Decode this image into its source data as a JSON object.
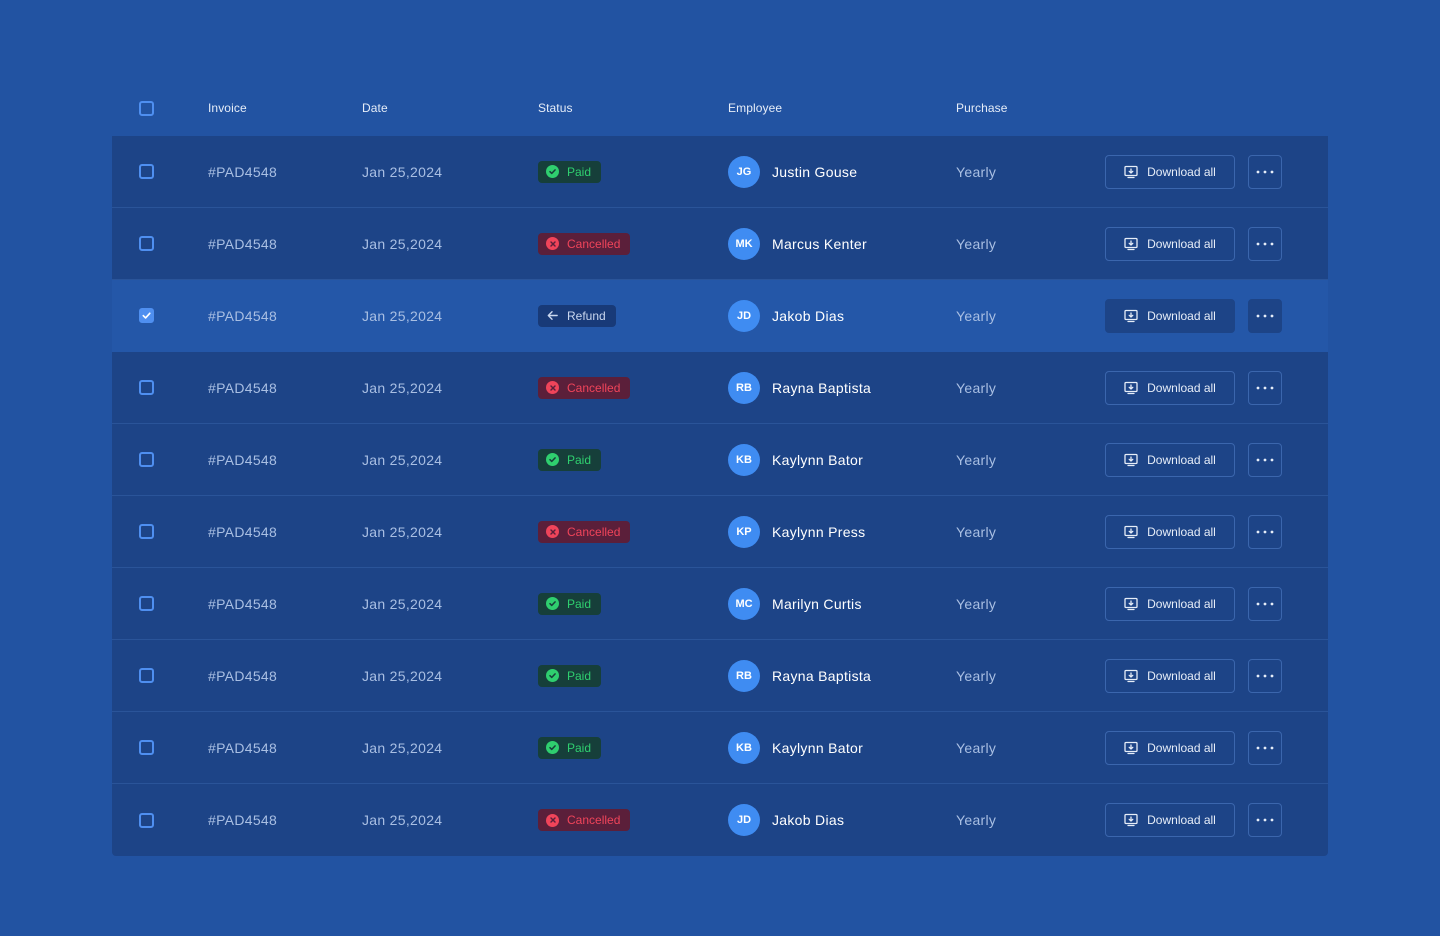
{
  "header": {
    "invoice": "Invoice",
    "date": "Date",
    "status": "Status",
    "employee": "Employee",
    "purchase": "Purchase"
  },
  "actions": {
    "download_label": "Download all"
  },
  "rows": [
    {
      "invoice": "#PAD4548",
      "date": "Jan 25,2024",
      "status": "Paid",
      "status_type": "paid",
      "initials": "JG",
      "employee": "Justin Gouse",
      "purchase": "Yearly",
      "checked": false
    },
    {
      "invoice": "#PAD4548",
      "date": "Jan 25,2024",
      "status": "Cancelled",
      "status_type": "cancelled",
      "initials": "MK",
      "employee": "Marcus Kenter",
      "purchase": "Yearly",
      "checked": false
    },
    {
      "invoice": "#PAD4548",
      "date": "Jan 25,2024",
      "status": "Refund",
      "status_type": "refund",
      "initials": "JD",
      "employee": "Jakob Dias",
      "purchase": "Yearly",
      "checked": true
    },
    {
      "invoice": "#PAD4548",
      "date": "Jan 25,2024",
      "status": "Cancelled",
      "status_type": "cancelled",
      "initials": "RB",
      "employee": "Rayna Baptista",
      "purchase": "Yearly",
      "checked": false
    },
    {
      "invoice": "#PAD4548",
      "date": "Jan 25,2024",
      "status": "Paid",
      "status_type": "paid",
      "initials": "KB",
      "employee": "Kaylynn Bator",
      "purchase": "Yearly",
      "checked": false
    },
    {
      "invoice": "#PAD4548",
      "date": "Jan 25,2024",
      "status": "Cancelled",
      "status_type": "cancelled",
      "initials": "KP",
      "employee": "Kaylynn Press",
      "purchase": "Yearly",
      "checked": false
    },
    {
      "invoice": "#PAD4548",
      "date": "Jan 25,2024",
      "status": "Paid",
      "status_type": "paid",
      "initials": "MC",
      "employee": "Marilyn Curtis",
      "purchase": "Yearly",
      "checked": false
    },
    {
      "invoice": "#PAD4548",
      "date": "Jan 25,2024",
      "status": "Paid",
      "status_type": "paid",
      "initials": "RB",
      "employee": "Rayna Baptista",
      "purchase": "Yearly",
      "checked": false
    },
    {
      "invoice": "#PAD4548",
      "date": "Jan 25,2024",
      "status": "Paid",
      "status_type": "paid",
      "initials": "KB",
      "employee": "Kaylynn Bator",
      "purchase": "Yearly",
      "checked": false
    },
    {
      "invoice": "#PAD4548",
      "date": "Jan 25,2024",
      "status": "Cancelled",
      "status_type": "cancelled",
      "initials": "JD",
      "employee": "Jakob Dias",
      "purchase": "Yearly",
      "checked": false
    }
  ],
  "icons": {
    "paid": "check-circle-icon",
    "cancelled": "x-circle-icon",
    "refund": "arrow-left-icon",
    "download": "download-icon",
    "more": "more-horizontal-icon"
  },
  "colors": {
    "background": "#2253a2",
    "row": "#1d4487",
    "selected_row": "#2457a8",
    "paid": "#2fcf6f",
    "cancelled": "#f0445a",
    "accent": "#4f8ff0"
  }
}
